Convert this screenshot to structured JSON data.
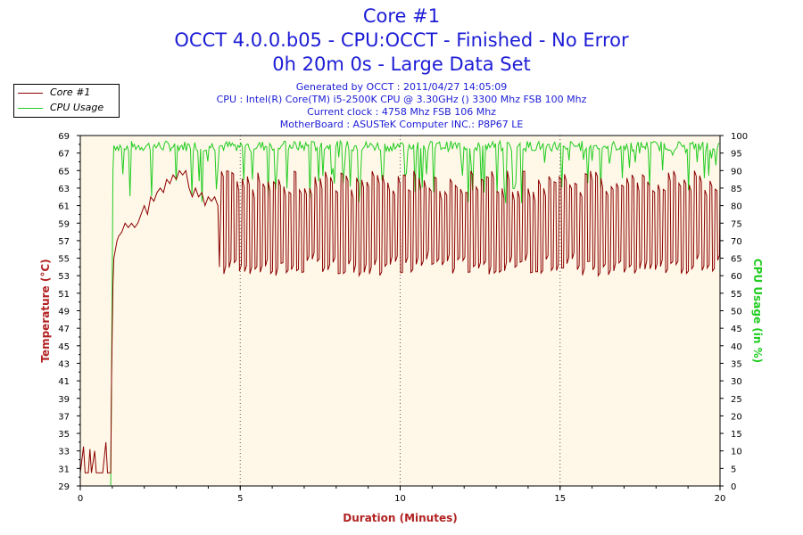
{
  "header": {
    "title": "Core #1",
    "line2": "OCCT 4.0.0.b05 - CPU:OCCT - Finished - No Error",
    "line3": "0h 20m 0s - Large Data Set"
  },
  "info": {
    "generated": "Generated by OCCT : 2011/04/27 14:05:09",
    "cpu": "CPU : Intel(R) Core(TM) i5-2500K CPU @ 3.30GHz () 3300 Mhz FSB 100 Mhz",
    "clock": "Current clock : 4758 Mhz FSB 106 Mhz",
    "motherboard": "MotherBoard : ASUSTeK Computer INC.: P8P67 LE"
  },
  "legend": {
    "items": [
      {
        "label": "Core #1"
      },
      {
        "label": "CPU Usage"
      }
    ]
  },
  "colors": {
    "temperature": "#8b0000",
    "cpu_usage": "#22cc22",
    "title": "#1c1cd6",
    "plot_bg": "#fff8e8"
  },
  "chart_data": {
    "type": "line",
    "xlabel": "Duration (Minutes)",
    "ylabel": "Temperature (°C)",
    "y2label": "CPU Usage (in %)",
    "xlim": [
      0,
      20
    ],
    "ylim": [
      29,
      69
    ],
    "y2lim": [
      0,
      100
    ],
    "xticks": [
      "0",
      "5",
      "10",
      "15",
      "20"
    ],
    "yticks": [
      "29",
      "31",
      "33",
      "35",
      "37",
      "39",
      "41",
      "43",
      "45",
      "47",
      "49",
      "51",
      "53",
      "55",
      "57",
      "59",
      "61",
      "63",
      "65",
      "67",
      "69"
    ],
    "y2ticks": [
      "0",
      "5",
      "10",
      "15",
      "20",
      "25",
      "30",
      "35",
      "40",
      "45",
      "50",
      "55",
      "60",
      "65",
      "70",
      "75",
      "80",
      "85",
      "90",
      "95",
      "100"
    ],
    "grid": "dotted",
    "legend_position": "top-left",
    "series": [
      {
        "name": "Core #1",
        "axis": "left",
        "points": [
          [
            0.0,
            30.5
          ],
          [
            0.1,
            33.5
          ],
          [
            0.15,
            30.5
          ],
          [
            0.25,
            30.5
          ],
          [
            0.3,
            33.2
          ],
          [
            0.35,
            30.5
          ],
          [
            0.45,
            33.0
          ],
          [
            0.5,
            30.5
          ],
          [
            0.6,
            30.5
          ],
          [
            0.7,
            30.5
          ],
          [
            0.8,
            34.0
          ],
          [
            0.85,
            30.5
          ],
          [
            0.9,
            30.5
          ],
          [
            0.95,
            30.5
          ],
          [
            0.98,
            42
          ],
          [
            1.02,
            52
          ],
          [
            1.05,
            55
          ],
          [
            1.1,
            56
          ],
          [
            1.15,
            57
          ],
          [
            1.2,
            57.5
          ],
          [
            1.3,
            58
          ],
          [
            1.4,
            59
          ],
          [
            1.5,
            58.5
          ],
          [
            1.6,
            59
          ],
          [
            1.7,
            58.5
          ],
          [
            1.8,
            59
          ],
          [
            1.9,
            60
          ],
          [
            2.0,
            61
          ],
          [
            2.1,
            60
          ],
          [
            2.2,
            62
          ],
          [
            2.3,
            61.5
          ],
          [
            2.4,
            62.5
          ],
          [
            2.5,
            63
          ],
          [
            2.6,
            62.5
          ],
          [
            2.7,
            64
          ],
          [
            2.8,
            63.5
          ],
          [
            2.9,
            64.5
          ],
          [
            3.0,
            64
          ],
          [
            3.1,
            65
          ],
          [
            3.2,
            64.5
          ],
          [
            3.3,
            65
          ],
          [
            3.4,
            63
          ],
          [
            3.5,
            62
          ],
          [
            3.6,
            63
          ],
          [
            3.7,
            62
          ],
          [
            3.8,
            62.5
          ],
          [
            3.9,
            61
          ],
          [
            4.0,
            62
          ],
          [
            4.1,
            61.5
          ],
          [
            4.2,
            62
          ],
          [
            4.3,
            61
          ],
          [
            4.35,
            54
          ],
          [
            4.4,
            62
          ]
        ],
        "oscillation": {
          "start": 4.4,
          "end": 20.0,
          "high": 63.5,
          "low": 54,
          "approx_cycles": 96
        }
      },
      {
        "name": "CPU Usage",
        "axis": "right",
        "points": [
          [
            0.0,
            0
          ],
          [
            0.9,
            0
          ],
          [
            0.95,
            0
          ],
          [
            0.98,
            35
          ],
          [
            1.0,
            60
          ],
          [
            1.02,
            90
          ],
          [
            1.05,
            97
          ],
          [
            20.0,
            97
          ]
        ],
        "baseline": 97,
        "dips_to_range": [
          82,
          96
        ]
      }
    ]
  }
}
